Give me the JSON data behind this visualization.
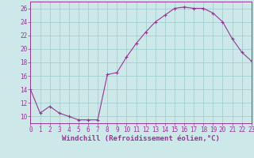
{
  "x": [
    0,
    1,
    2,
    3,
    4,
    5,
    6,
    7,
    8,
    9,
    10,
    11,
    12,
    13,
    14,
    15,
    16,
    17,
    18,
    19,
    20,
    21,
    22,
    23
  ],
  "y": [
    14,
    10.5,
    11.5,
    10.5,
    10,
    9.5,
    9.5,
    9.5,
    16.2,
    16.5,
    18.8,
    20.8,
    22.5,
    24.0,
    25.0,
    26.0,
    26.2,
    26.0,
    26.0,
    25.3,
    24.0,
    21.5,
    19.5,
    18.2
  ],
  "line_color": "#993399",
  "marker": "+",
  "bg_color": "#cce8e8",
  "grid_color": "#99cccc",
  "tick_color": "#993399",
  "label_color": "#993399",
  "xlabel": "Windchill (Refroidissement éolien,°C)",
  "ylim": [
    9,
    27
  ],
  "xlim": [
    0,
    23
  ],
  "yticks": [
    10,
    12,
    14,
    16,
    18,
    20,
    22,
    24,
    26
  ],
  "xticks": [
    0,
    1,
    2,
    3,
    4,
    5,
    6,
    7,
    8,
    9,
    10,
    11,
    12,
    13,
    14,
    15,
    16,
    17,
    18,
    19,
    20,
    21,
    22,
    23
  ],
  "tick_fontsize": 5.5,
  "xlabel_fontsize": 6.5
}
